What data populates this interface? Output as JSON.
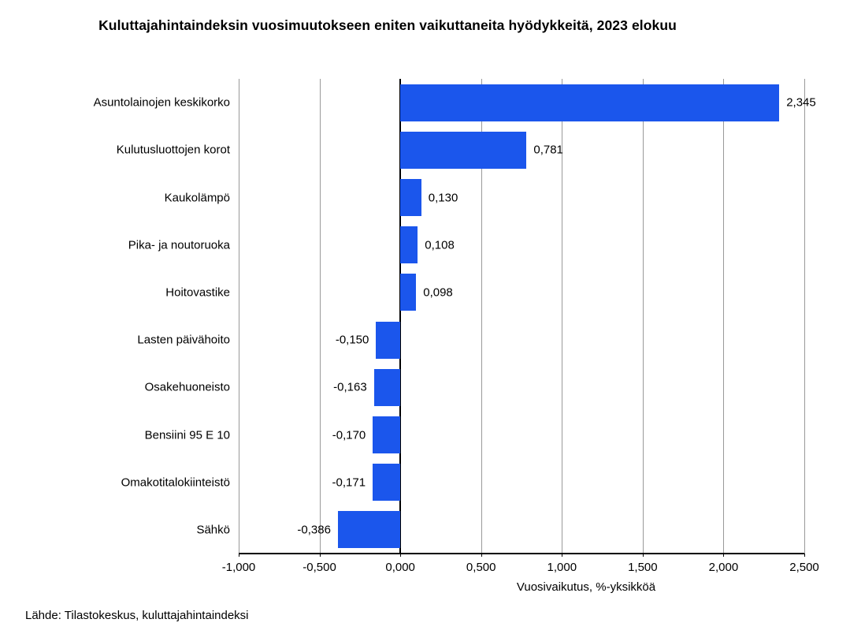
{
  "chart_data": {
    "type": "bar",
    "orientation": "horizontal",
    "title": "Kuluttajahintaindeksin vuosimuutokseen eniten vaikuttaneita hyödykkeitä, 2023 elokuu",
    "xlabel": "Vuosivaikutus, %-yksikköä",
    "source": "Lähde: Tilastokeskus, kuluttajahintaindeksi",
    "categories": [
      "Asuntolainojen keskikorko",
      "Kulutusluottojen korot",
      "Kaukolämpö",
      "Pika- ja noutoruoka",
      "Hoitovastike",
      "Lasten päivähoito",
      "Osakehuoneisto",
      "Bensiini 95 E 10",
      "Omakotitalokiinteistö",
      "Sähkö"
    ],
    "values": [
      2.345,
      0.781,
      0.13,
      0.108,
      0.098,
      -0.15,
      -0.163,
      -0.17,
      -0.171,
      -0.386
    ],
    "value_labels": [
      "2,345",
      "0,781",
      "0,130",
      "0,108",
      "0,098",
      "-0,150",
      "-0,163",
      "-0,170",
      "-0,171",
      "-0,386"
    ],
    "xlim": [
      -1.0,
      2.5
    ],
    "xticks": [
      {
        "value": -1.0,
        "label": "-1,000"
      },
      {
        "value": -0.5,
        "label": "-0,500"
      },
      {
        "value": 0.0,
        "label": "0,000"
      },
      {
        "value": 0.5,
        "label": "0,500"
      },
      {
        "value": 1.0,
        "label": "1,000"
      },
      {
        "value": 1.5,
        "label": "1,500"
      },
      {
        "value": 2.0,
        "label": "2,000"
      },
      {
        "value": 2.5,
        "label": "2,500"
      }
    ],
    "grid": true,
    "legend": false,
    "colors": {
      "bar": "#1b56ec",
      "gridline": "#999999",
      "axis": "#000000",
      "text": "#000000",
      "background": "#ffffff"
    }
  }
}
